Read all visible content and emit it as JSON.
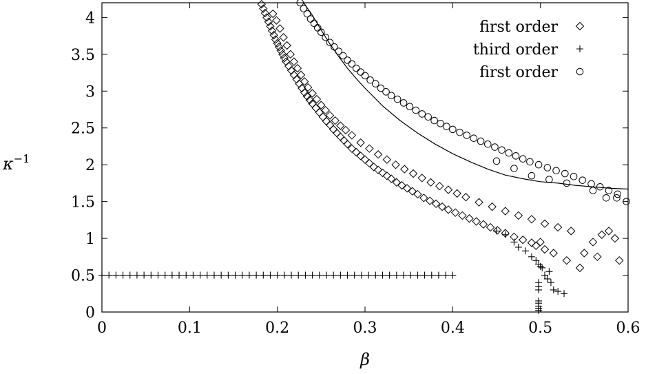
{
  "chart_data": {
    "type": "scatter",
    "title": "",
    "xlabel": "β",
    "ylabel": "κ",
    "ylabel_sup": "−1",
    "xlim": [
      0,
      0.6
    ],
    "ylim": [
      0,
      4.2
    ],
    "grid": false,
    "legend_position": "top-right",
    "x_ticks": [
      0,
      0.1,
      0.2,
      0.3,
      0.4,
      0.5,
      0.6
    ],
    "x_tick_labels": [
      "0",
      "0.1",
      "0.2",
      "0.3",
      "0.4",
      "0.5",
      "0.6"
    ],
    "y_ticks": [
      0,
      0.5,
      1,
      1.5,
      2,
      2.5,
      3,
      3.5,
      4
    ],
    "y_tick_labels": [
      "0",
      "0.5",
      "1",
      "1.5",
      "2",
      "2.5",
      "3",
      "3.5",
      "4"
    ],
    "series": [
      {
        "name": "first order",
        "marker": "diamond",
        "points": [
          [
            0.182,
            4.18
          ],
          [
            0.184,
            4.12
          ],
          [
            0.186,
            4.06
          ],
          [
            0.188,
            4.0
          ],
          [
            0.19,
            3.94
          ],
          [
            0.192,
            3.88
          ],
          [
            0.194,
            3.82
          ],
          [
            0.196,
            3.76
          ],
          [
            0.198,
            3.7
          ],
          [
            0.2,
            3.65
          ],
          [
            0.202,
            3.6
          ],
          [
            0.204,
            3.55
          ],
          [
            0.206,
            3.5
          ],
          [
            0.208,
            3.45
          ],
          [
            0.21,
            3.4
          ],
          [
            0.213,
            3.34
          ],
          [
            0.216,
            3.28
          ],
          [
            0.219,
            3.22
          ],
          [
            0.222,
            3.16
          ],
          [
            0.225,
            3.1
          ],
          [
            0.228,
            3.04
          ],
          [
            0.231,
            2.98
          ],
          [
            0.234,
            2.93
          ],
          [
            0.237,
            2.88
          ],
          [
            0.24,
            2.83
          ],
          [
            0.244,
            2.77
          ],
          [
            0.248,
            2.71
          ],
          [
            0.252,
            2.65
          ],
          [
            0.256,
            2.59
          ],
          [
            0.26,
            2.54
          ],
          [
            0.264,
            2.48
          ],
          [
            0.268,
            2.43
          ],
          [
            0.272,
            2.38
          ],
          [
            0.276,
            2.33
          ],
          [
            0.28,
            2.28
          ],
          [
            0.285,
            2.22
          ],
          [
            0.29,
            2.17
          ],
          [
            0.295,
            2.12
          ],
          [
            0.3,
            2.07
          ],
          [
            0.305,
            2.02
          ],
          [
            0.31,
            1.97
          ],
          [
            0.315,
            1.93
          ],
          [
            0.32,
            1.89
          ],
          [
            0.325,
            1.85
          ],
          [
            0.33,
            1.81
          ],
          [
            0.336,
            1.76
          ],
          [
            0.342,
            1.72
          ],
          [
            0.348,
            1.68
          ],
          [
            0.354,
            1.64
          ],
          [
            0.36,
            1.6
          ],
          [
            0.367,
            1.55
          ],
          [
            0.374,
            1.51
          ],
          [
            0.381,
            1.47
          ],
          [
            0.388,
            1.43
          ],
          [
            0.395,
            1.39
          ],
          [
            0.403,
            1.35
          ],
          [
            0.411,
            1.31
          ],
          [
            0.419,
            1.27
          ],
          [
            0.427,
            1.23
          ],
          [
            0.435,
            1.19
          ],
          [
            0.443,
            1.15
          ],
          [
            0.451,
            1.11
          ],
          [
            0.46,
            1.07
          ],
          [
            0.47,
            1.02
          ],
          [
            0.48,
            0.98
          ],
          [
            0.49,
            0.94
          ],
          [
            0.195,
            4.05
          ],
          [
            0.199,
            3.96
          ],
          [
            0.203,
            3.85
          ],
          [
            0.207,
            3.73
          ],
          [
            0.211,
            3.62
          ],
          [
            0.215,
            3.5
          ],
          [
            0.219,
            3.4
          ],
          [
            0.223,
            3.31
          ],
          [
            0.227,
            3.22
          ],
          [
            0.231,
            3.13
          ],
          [
            0.235,
            3.05
          ],
          [
            0.24,
            2.97
          ],
          [
            0.245,
            2.89
          ],
          [
            0.25,
            2.81
          ],
          [
            0.255,
            2.74
          ],
          [
            0.26,
            2.67
          ],
          [
            0.266,
            2.6
          ],
          [
            0.272,
            2.53
          ],
          [
            0.278,
            2.47
          ],
          [
            0.285,
            2.4
          ],
          [
            0.295,
            2.3
          ],
          [
            0.305,
            2.22
          ],
          [
            0.315,
            2.14
          ],
          [
            0.325,
            2.07
          ],
          [
            0.335,
            2.0
          ],
          [
            0.345,
            1.94
          ],
          [
            0.355,
            1.88
          ],
          [
            0.365,
            1.82
          ],
          [
            0.375,
            1.76
          ],
          [
            0.385,
            1.71
          ],
          [
            0.395,
            1.66
          ],
          [
            0.405,
            1.61
          ],
          [
            0.415,
            1.56
          ],
          [
            0.43,
            1.49
          ],
          [
            0.445,
            1.43
          ],
          [
            0.46,
            1.37
          ],
          [
            0.475,
            1.31
          ],
          [
            0.49,
            1.26
          ],
          [
            0.505,
            1.2
          ],
          [
            0.52,
            1.15
          ],
          [
            0.535,
            1.1
          ],
          [
            0.495,
            0.9
          ],
          [
            0.505,
            0.85
          ],
          [
            0.515,
            0.8
          ],
          [
            0.53,
            0.7
          ],
          [
            0.545,
            0.6
          ],
          [
            0.56,
            0.95
          ],
          [
            0.57,
            1.05
          ],
          [
            0.578,
            1.1
          ],
          [
            0.585,
            1.0
          ],
          [
            0.59,
            0.7
          ],
          [
            0.565,
            0.75
          ],
          [
            0.55,
            0.8
          ],
          [
            0.5,
            0.95
          ]
        ]
      },
      {
        "name": "third order",
        "marker": "plus",
        "points": [
          [
            0.0,
            0.5
          ],
          [
            0.008,
            0.5
          ],
          [
            0.016,
            0.5
          ],
          [
            0.024,
            0.5
          ],
          [
            0.032,
            0.5
          ],
          [
            0.04,
            0.5
          ],
          [
            0.048,
            0.5
          ],
          [
            0.056,
            0.5
          ],
          [
            0.064,
            0.5
          ],
          [
            0.072,
            0.5
          ],
          [
            0.08,
            0.5
          ],
          [
            0.088,
            0.5
          ],
          [
            0.096,
            0.5
          ],
          [
            0.104,
            0.5
          ],
          [
            0.112,
            0.5
          ],
          [
            0.12,
            0.5
          ],
          [
            0.128,
            0.5
          ],
          [
            0.136,
            0.5
          ],
          [
            0.144,
            0.5
          ],
          [
            0.152,
            0.5
          ],
          [
            0.16,
            0.5
          ],
          [
            0.168,
            0.5
          ],
          [
            0.176,
            0.5
          ],
          [
            0.184,
            0.5
          ],
          [
            0.192,
            0.5
          ],
          [
            0.2,
            0.5
          ],
          [
            0.208,
            0.5
          ],
          [
            0.216,
            0.5
          ],
          [
            0.224,
            0.5
          ],
          [
            0.232,
            0.5
          ],
          [
            0.24,
            0.5
          ],
          [
            0.248,
            0.5
          ],
          [
            0.256,
            0.5
          ],
          [
            0.264,
            0.5
          ],
          [
            0.272,
            0.5
          ],
          [
            0.28,
            0.5
          ],
          [
            0.288,
            0.5
          ],
          [
            0.296,
            0.5
          ],
          [
            0.304,
            0.5
          ],
          [
            0.312,
            0.5
          ],
          [
            0.32,
            0.5
          ],
          [
            0.328,
            0.5
          ],
          [
            0.336,
            0.5
          ],
          [
            0.344,
            0.5
          ],
          [
            0.352,
            0.5
          ],
          [
            0.36,
            0.5
          ],
          [
            0.368,
            0.5
          ],
          [
            0.376,
            0.5
          ],
          [
            0.384,
            0.5
          ],
          [
            0.392,
            0.5
          ],
          [
            0.4,
            0.5
          ],
          [
            0.45,
            1.1
          ],
          [
            0.46,
            1.05
          ],
          [
            0.47,
            0.95
          ],
          [
            0.475,
            0.88
          ],
          [
            0.483,
            0.83
          ],
          [
            0.49,
            0.75
          ],
          [
            0.495,
            0.7
          ],
          [
            0.498,
            0.65
          ],
          [
            0.5,
            0.62
          ],
          [
            0.502,
            0.6
          ],
          [
            0.498,
            0.4
          ],
          [
            0.498,
            0.35
          ],
          [
            0.498,
            0.3
          ],
          [
            0.498,
            0.15
          ],
          [
            0.498,
            0.12
          ],
          [
            0.498,
            0.08
          ],
          [
            0.498,
            0.05
          ],
          [
            0.498,
            0.02
          ],
          [
            0.505,
            0.5
          ],
          [
            0.508,
            0.45
          ],
          [
            0.51,
            0.55
          ],
          [
            0.515,
            0.3
          ],
          [
            0.52,
            0.28
          ],
          [
            0.527,
            0.25
          ],
          [
            0.512,
            0.4
          ]
        ]
      },
      {
        "name": "first order",
        "marker": "circle",
        "points": [
          [
            0.226,
            4.2
          ],
          [
            0.23,
            4.12
          ],
          [
            0.234,
            4.05
          ],
          [
            0.238,
            3.98
          ],
          [
            0.242,
            3.92
          ],
          [
            0.246,
            3.86
          ],
          [
            0.25,
            3.8
          ],
          [
            0.255,
            3.73
          ],
          [
            0.26,
            3.66
          ],
          [
            0.265,
            3.6
          ],
          [
            0.27,
            3.54
          ],
          [
            0.275,
            3.48
          ],
          [
            0.28,
            3.42
          ],
          [
            0.285,
            3.37
          ],
          [
            0.29,
            3.31
          ],
          [
            0.295,
            3.26
          ],
          [
            0.3,
            3.21
          ],
          [
            0.306,
            3.15
          ],
          [
            0.312,
            3.1
          ],
          [
            0.318,
            3.04
          ],
          [
            0.324,
            2.99
          ],
          [
            0.33,
            2.94
          ],
          [
            0.337,
            2.89
          ],
          [
            0.344,
            2.84
          ],
          [
            0.351,
            2.79
          ],
          [
            0.358,
            2.74
          ],
          [
            0.365,
            2.69
          ],
          [
            0.372,
            2.65
          ],
          [
            0.379,
            2.6
          ],
          [
            0.386,
            2.56
          ],
          [
            0.393,
            2.52
          ],
          [
            0.4,
            2.48
          ],
          [
            0.408,
            2.44
          ],
          [
            0.416,
            2.4
          ],
          [
            0.424,
            2.36
          ],
          [
            0.432,
            2.32
          ],
          [
            0.44,
            2.28
          ],
          [
            0.448,
            2.24
          ],
          [
            0.456,
            2.2
          ],
          [
            0.464,
            2.16
          ],
          [
            0.472,
            2.12
          ],
          [
            0.48,
            2.08
          ],
          [
            0.488,
            2.04
          ],
          [
            0.498,
            2.0
          ],
          [
            0.508,
            1.96
          ],
          [
            0.518,
            1.92
          ],
          [
            0.528,
            1.88
          ],
          [
            0.538,
            1.84
          ],
          [
            0.548,
            1.79
          ],
          [
            0.558,
            1.74
          ],
          [
            0.568,
            1.7
          ],
          [
            0.578,
            1.65
          ],
          [
            0.588,
            1.6
          ],
          [
            0.598,
            1.5
          ],
          [
            0.45,
            2.05
          ],
          [
            0.47,
            1.95
          ],
          [
            0.49,
            1.85
          ],
          [
            0.51,
            1.8
          ],
          [
            0.53,
            1.75
          ],
          [
            0.56,
            1.65
          ],
          [
            0.575,
            1.55
          ],
          [
            0.587,
            1.55
          ]
        ]
      }
    ],
    "fitted_curve": {
      "marker": "line",
      "x": [
        0.23,
        0.24,
        0.25,
        0.26,
        0.27,
        0.28,
        0.29,
        0.3,
        0.32,
        0.34,
        0.36,
        0.38,
        0.4,
        0.42,
        0.44,
        0.46,
        0.48,
        0.5,
        0.52,
        0.54,
        0.56,
        0.58,
        0.6
      ],
      "y": [
        4.26,
        4.03,
        3.83,
        3.64,
        3.47,
        3.31,
        3.17,
        3.04,
        2.8,
        2.6,
        2.43,
        2.28,
        2.15,
        2.04,
        1.94,
        1.86,
        1.81,
        1.77,
        1.75,
        1.72,
        1.7,
        1.68,
        1.67
      ]
    }
  }
}
